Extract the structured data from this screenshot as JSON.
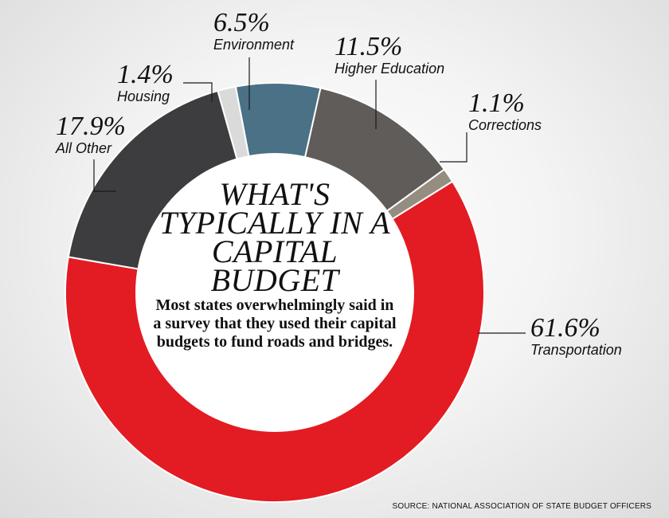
{
  "chart_data": {
    "type": "pie",
    "style": "donut",
    "title": "What's typically in a capital budget",
    "subtitle": "Most states overwhelmingly said in a survey that they used their capital budgets to fund roads and bridges.",
    "source": "SOURCE: NATIONAL ASSOCIATION OF STATE BUDGET OFFICERS",
    "slices": [
      {
        "label": "Transportation",
        "value": 61.6,
        "value_label": "61.6%",
        "color": "#e31b23"
      },
      {
        "label": "All Other",
        "value": 17.9,
        "value_label": "17.9%",
        "color": "#3d3d3f"
      },
      {
        "label": "Housing",
        "value": 1.4,
        "value_label": "1.4%",
        "color": "#dadada"
      },
      {
        "label": "Environment",
        "value": 6.5,
        "value_label": "6.5%",
        "color": "#4a7186"
      },
      {
        "label": "Higher Education",
        "value": 11.5,
        "value_label": "11.5%",
        "color": "#605c5a"
      },
      {
        "label": "Corrections",
        "value": 1.1,
        "value_label": "1.1%",
        "color": "#958d80"
      }
    ]
  }
}
